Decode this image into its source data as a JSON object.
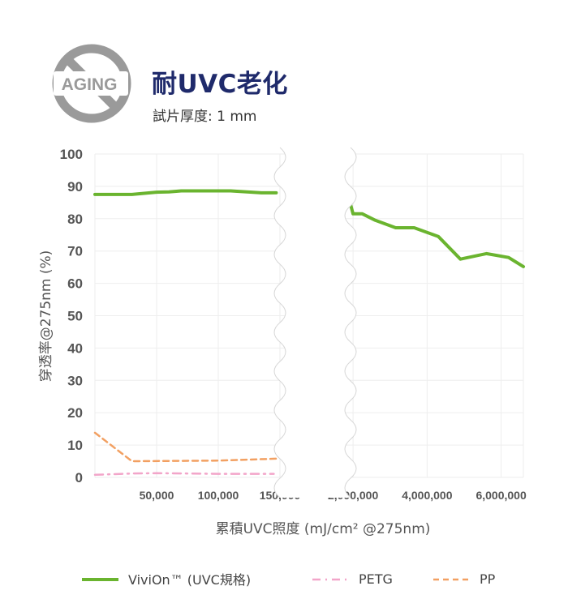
{
  "header": {
    "badge_text": "AGING",
    "title": "耐UVC老化",
    "subtitle": "試片厚度: 1 mm"
  },
  "chart_data": {
    "type": "line",
    "title": "耐UVC老化",
    "subtitle": "試片厚度: 1 mm",
    "xlabel": "累積UVC照度 (mJ/cm² @275nm)",
    "ylabel": "穿透率@275nm (%)",
    "ylim": [
      0,
      100
    ],
    "yticks": [
      "0",
      "10",
      "20",
      "30",
      "40",
      "50",
      "60",
      "70",
      "80",
      "90",
      "100"
    ],
    "grid": true,
    "legend_position": "bottom",
    "axis_break": true,
    "x_ranges": [
      {
        "min": 0,
        "max": 150000,
        "ticks": [
          "50,000",
          "100,000",
          "150,000"
        ],
        "tick_values": [
          50000,
          100000,
          150000
        ]
      },
      {
        "min": 1800000,
        "max": 6600000,
        "ticks": [
          "2,000,000",
          "4,000,000",
          "6,000,000"
        ],
        "tick_values": [
          2000000,
          4000000,
          6000000
        ]
      }
    ],
    "series": [
      {
        "name": "ViviOn™ (UVC規格)",
        "color": "#6ab42f",
        "style": "solid",
        "segments": [
          {
            "x": [
              0,
              30000,
              50000,
              60000,
              70000,
              100000,
              110000,
              135000,
              147000
            ],
            "y": [
              87.5,
              87.5,
              88.2,
              88.3,
              88.6,
              88.6,
              88.6,
              88.0,
              88.0
            ]
          },
          {
            "x": [
              1850000,
              1930000,
              2000000,
              2250000,
              2600000,
              3150000,
              3650000,
              4300000,
              4900000,
              5600000,
              6200000,
              6600000
            ],
            "y": [
              85.0,
              84.5,
              81.5,
              81.5,
              79.5,
              77.2,
              77.2,
              74.5,
              67.5,
              69.2,
              68.0,
              65.2
            ]
          }
        ]
      },
      {
        "name": "PETG",
        "color": "#f2a5c9",
        "style": "dashdot",
        "segments": [
          {
            "x": [
              0,
              30000,
              50000,
              100000,
              145000
            ],
            "y": [
              0.8,
              1.2,
              1.3,
              1.1,
              1.1
            ]
          }
        ]
      },
      {
        "name": "PP",
        "color": "#f2a062",
        "style": "dashed",
        "segments": [
          {
            "x": [
              0,
              30000,
              100000,
              147000
            ],
            "y": [
              13.8,
              5.0,
              5.2,
              5.8
            ]
          }
        ]
      }
    ]
  }
}
